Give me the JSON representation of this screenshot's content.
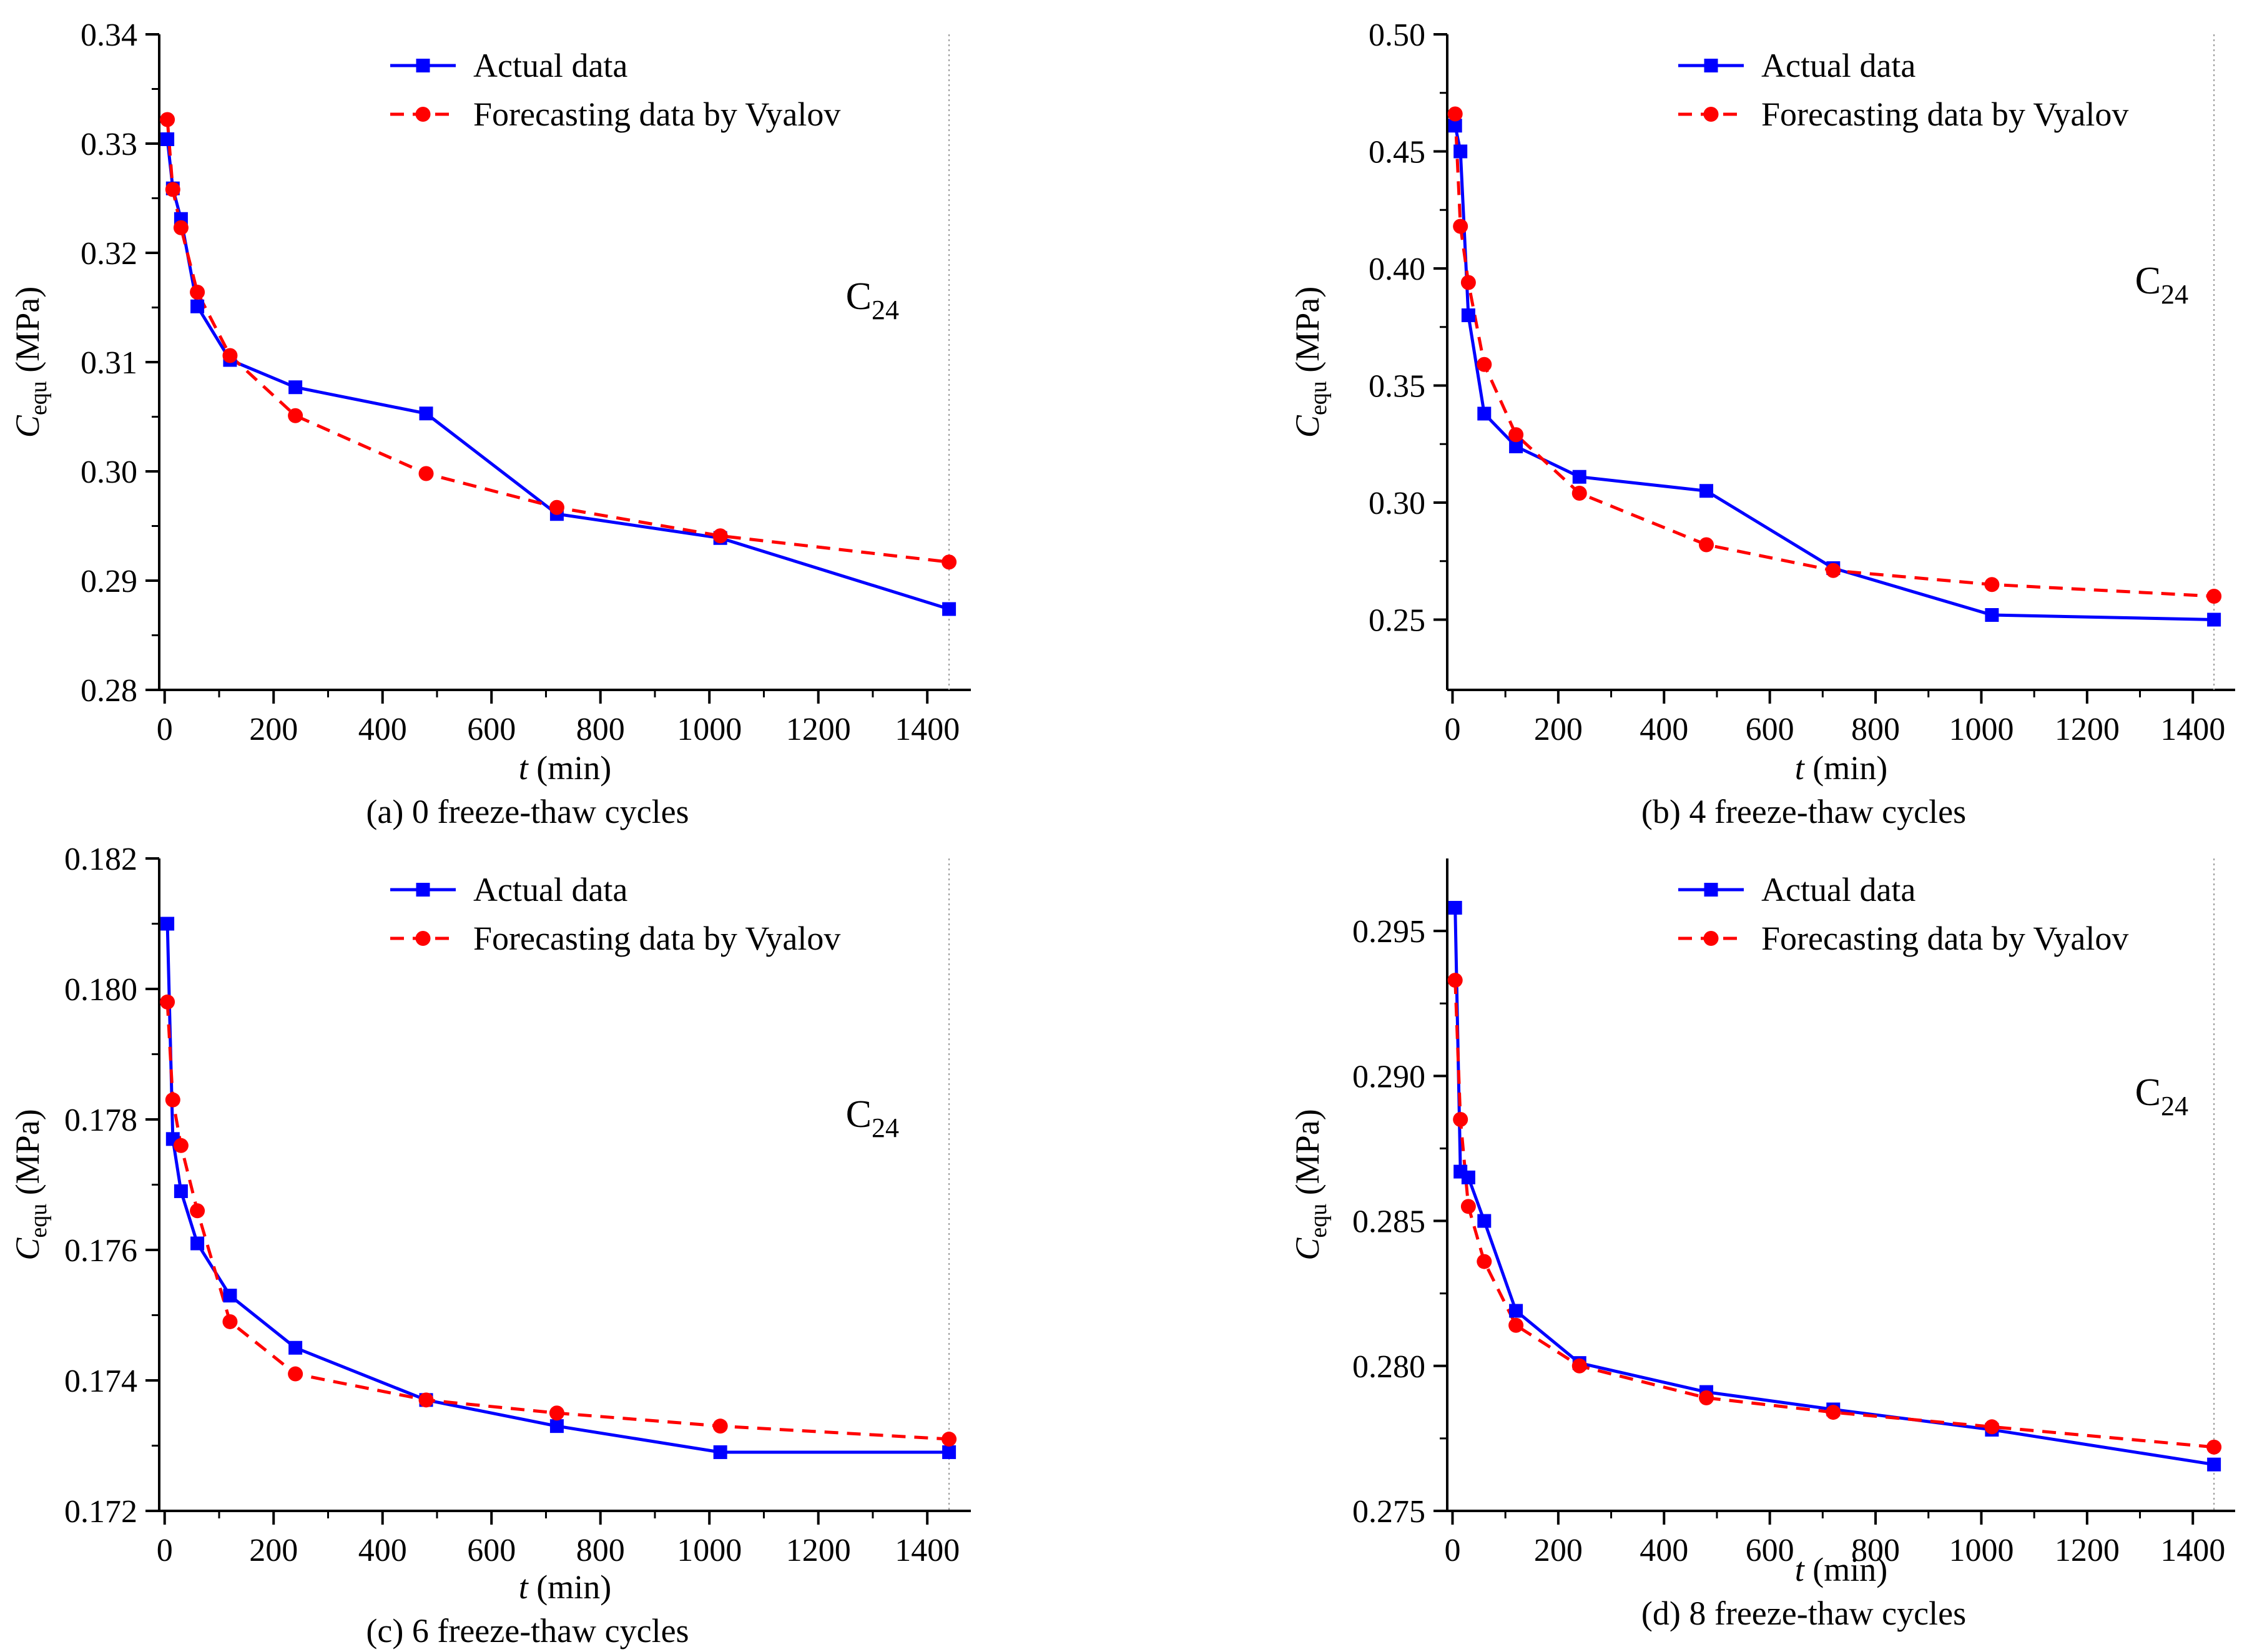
{
  "chart_data": [
    {
      "type": "line",
      "caption": "(a) 0 freeze-thaw cycles",
      "xlabel": {
        "var": "t",
        "unit": " (min)"
      },
      "ylabel": {
        "var": "C",
        "sub": "equ",
        "unit": " (MPa)"
      },
      "annotation": {
        "base": "C",
        "sub": "24"
      },
      "xlim": [
        -10,
        1480
      ],
      "ylim": [
        0.28,
        0.34
      ],
      "xticks": [
        0,
        200,
        400,
        600,
        800,
        1000,
        1200,
        1400
      ],
      "yticks": [
        0.28,
        0.29,
        0.3,
        0.31,
        0.32,
        0.33,
        0.34
      ],
      "ytick_labels": [
        "0.28",
        "0.29",
        "0.30",
        "0.31",
        "0.32",
        "0.33",
        "0.34"
      ],
      "vline_x": 1440,
      "series": [
        {
          "name": "Actual data",
          "color": "#0000ff",
          "marker": "square",
          "dash": "solid",
          "x": [
            5,
            15,
            30,
            60,
            120,
            240,
            480,
            720,
            1020,
            1440
          ],
          "y": [
            0.3304,
            0.3259,
            0.3231,
            0.3151,
            0.3102,
            0.3077,
            0.3053,
            0.2961,
            0.2939,
            0.2874
          ]
        },
        {
          "name": "Forecasting data by Vyalov",
          "color": "#ff0000",
          "marker": "circle",
          "dash": "dashed",
          "x": [
            5,
            15,
            30,
            60,
            120,
            240,
            480,
            720,
            1020,
            1440
          ],
          "y": [
            0.3322,
            0.3258,
            0.3223,
            0.3164,
            0.3106,
            0.3051,
            0.2998,
            0.2967,
            0.2941,
            0.2917
          ]
        }
      ]
    },
    {
      "type": "line",
      "caption": "(b) 4 freeze-thaw cycles",
      "xlabel": {
        "var": "t",
        "unit": " (min)"
      },
      "ylabel": {
        "var": "C",
        "sub": "equ",
        "unit": " (MPa)"
      },
      "annotation": {
        "base": "C",
        "sub": "24"
      },
      "xlim": [
        -10,
        1480
      ],
      "ylim": [
        0.22,
        0.5
      ],
      "xticks": [
        0,
        200,
        400,
        600,
        800,
        1000,
        1200,
        1400
      ],
      "yticks": [
        0.25,
        0.3,
        0.35,
        0.4,
        0.45,
        0.5
      ],
      "ytick_labels": [
        "0.25",
        "0.30",
        "0.35",
        "0.40",
        "0.45",
        "0.50"
      ],
      "vline_x": 1440,
      "series": [
        {
          "name": "Actual data",
          "color": "#0000ff",
          "marker": "square",
          "dash": "solid",
          "x": [
            5,
            15,
            30,
            60,
            120,
            240,
            480,
            720,
            1020,
            1440
          ],
          "y": [
            0.461,
            0.45,
            0.38,
            0.338,
            0.324,
            0.311,
            0.305,
            0.272,
            0.252,
            0.25
          ]
        },
        {
          "name": "Forecasting data by Vyalov",
          "color": "#ff0000",
          "marker": "circle",
          "dash": "dashed",
          "x": [
            5,
            15,
            30,
            60,
            120,
            240,
            480,
            720,
            1020,
            1440
          ],
          "y": [
            0.466,
            0.418,
            0.394,
            0.359,
            0.329,
            0.304,
            0.282,
            0.271,
            0.265,
            0.26
          ]
        }
      ]
    },
    {
      "type": "line",
      "caption": "(c) 6 freeze-thaw cycles",
      "xlabel": {
        "var": "t",
        "unit": " (min)"
      },
      "ylabel": {
        "var": "C",
        "sub": "equ",
        "unit": " (MPa)"
      },
      "annotation": {
        "base": "C",
        "sub": "24"
      },
      "xlim": [
        -10,
        1480
      ],
      "ylim": [
        0.172,
        0.182
      ],
      "xticks": [
        0,
        200,
        400,
        600,
        800,
        1000,
        1200,
        1400
      ],
      "yticks": [
        0.172,
        0.174,
        0.176,
        0.178,
        0.18,
        0.182
      ],
      "ytick_labels": [
        "0.172",
        "0.174",
        "0.176",
        "0.178",
        "0.180",
        "0.182"
      ],
      "vline_x": 1440,
      "series": [
        {
          "name": "Actual data",
          "color": "#0000ff",
          "marker": "square",
          "dash": "solid",
          "x": [
            5,
            15,
            30,
            60,
            120,
            240,
            480,
            720,
            1020,
            1440
          ],
          "y": [
            0.181,
            0.1777,
            0.1769,
            0.1761,
            0.1753,
            0.1745,
            0.1737,
            0.1733,
            0.1729,
            0.1729
          ]
        },
        {
          "name": "Forecasting data by Vyalov",
          "color": "#ff0000",
          "marker": "circle",
          "dash": "dashed",
          "x": [
            5,
            15,
            30,
            60,
            120,
            240,
            480,
            720,
            1020,
            1440
          ],
          "y": [
            0.1798,
            0.1783,
            0.1776,
            0.1766,
            0.1749,
            0.1741,
            0.1737,
            0.1735,
            0.1733,
            0.1731
          ]
        }
      ]
    },
    {
      "type": "line",
      "caption": "(d) 8 freeze-thaw cycles",
      "xlabel": {
        "var": "t",
        "unit": " (min)"
      },
      "ylabel": {
        "var": "C",
        "sub": "equ",
        "unit": " (MPa)"
      },
      "annotation": {
        "base": "C",
        "sub": "24"
      },
      "xlim": [
        -10,
        1480
      ],
      "ylim": [
        0.275,
        0.2975
      ],
      "xticks": [
        0,
        200,
        400,
        600,
        800,
        1000,
        1200,
        1400
      ],
      "yticks": [
        0.275,
        0.28,
        0.285,
        0.29,
        0.295
      ],
      "ytick_labels": [
        "0.275",
        "0.280",
        "0.285",
        "0.290",
        "0.295"
      ],
      "vline_x": 1440,
      "series": [
        {
          "name": "Actual data",
          "color": "#0000ff",
          "marker": "square",
          "dash": "solid",
          "x": [
            5,
            15,
            30,
            60,
            120,
            240,
            480,
            720,
            1020,
            1440
          ],
          "y": [
            0.2958,
            0.2867,
            0.2865,
            0.285,
            0.2819,
            0.2801,
            0.2791,
            0.2785,
            0.2778,
            0.2766
          ]
        },
        {
          "name": "Forecasting data by Vyalov",
          "color": "#ff0000",
          "marker": "circle",
          "dash": "dashed",
          "x": [
            5,
            15,
            30,
            60,
            120,
            240,
            480,
            720,
            1020,
            1440
          ],
          "y": [
            0.2933,
            0.2885,
            0.2855,
            0.2836,
            0.2814,
            0.28,
            0.2789,
            0.2784,
            0.2779,
            0.2772
          ]
        }
      ]
    }
  ]
}
